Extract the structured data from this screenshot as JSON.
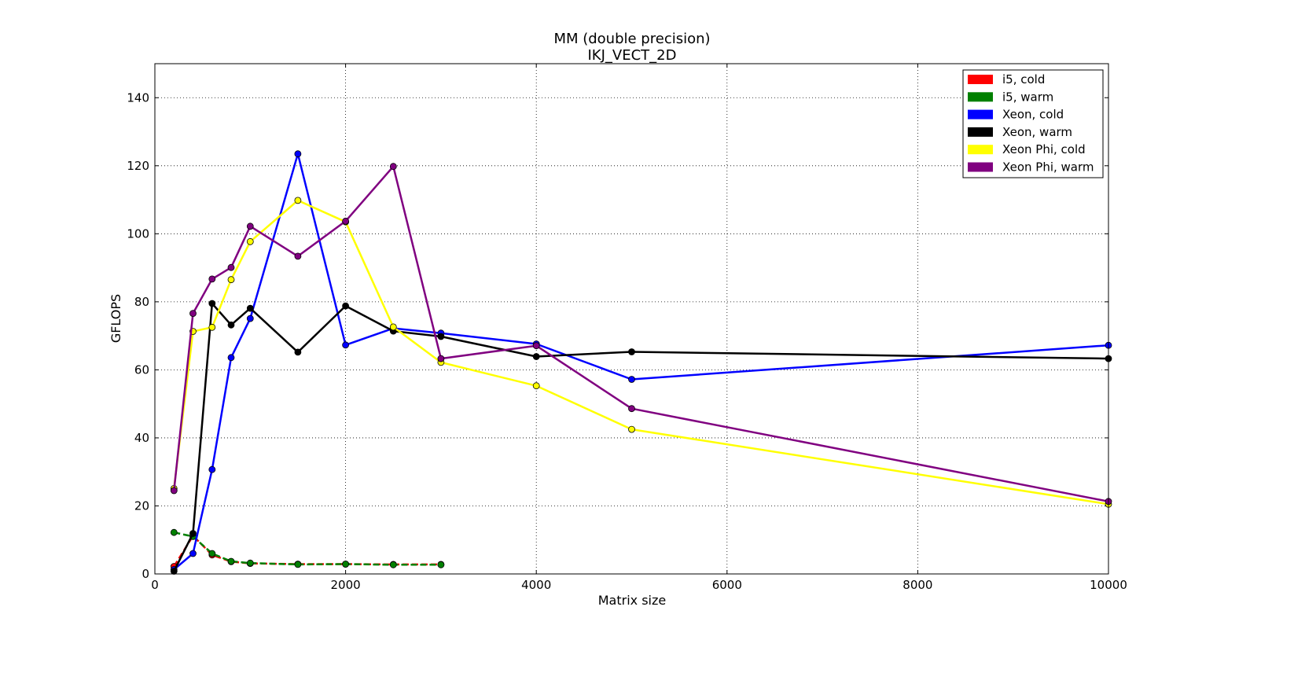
{
  "chart_data": {
    "type": "line",
    "title": "MM (double precision)",
    "subtitle": "IKJ_VECT_2D",
    "xlabel": "Matrix size",
    "ylabel": "GFLOPS",
    "xlim": [
      0,
      10000
    ],
    "ylim": [
      0,
      150
    ],
    "x_ticks": [
      0,
      2000,
      4000,
      6000,
      8000,
      10000
    ],
    "y_ticks": [
      0,
      20,
      40,
      60,
      80,
      100,
      120,
      140
    ],
    "grid": true,
    "legend_position": "top-right",
    "series": [
      {
        "name": "i5, cold",
        "color": "#ff0000",
        "dashed": true,
        "x": [
          200,
          400,
          600,
          800,
          1000,
          1500,
          2000,
          2500,
          3000
        ],
        "y": [
          2.2,
          11.2,
          5.6,
          3.6,
          3.1,
          2.9,
          2.9,
          2.8,
          2.8
        ]
      },
      {
        "name": "i5, warm",
        "color": "#008000",
        "dashed": true,
        "x": [
          200,
          400,
          600,
          800,
          1000,
          1500,
          2000,
          2500,
          3000
        ],
        "y": [
          12.2,
          11.0,
          6.0,
          3.7,
          3.2,
          2.8,
          2.9,
          2.7,
          2.7
        ]
      },
      {
        "name": "Xeon, cold",
        "color": "#0000ff",
        "dashed": false,
        "x": [
          200,
          400,
          600,
          800,
          1000,
          1500,
          2000,
          2500,
          3000,
          4000,
          5000,
          10000
        ],
        "y": [
          1.3,
          6.0,
          30.7,
          63.6,
          75.1,
          123.5,
          67.3,
          72.2,
          70.8,
          67.6,
          57.2,
          67.2
        ]
      },
      {
        "name": "Xeon, warm",
        "color": "#000000",
        "dashed": false,
        "x": [
          200,
          400,
          600,
          800,
          1000,
          1500,
          2000,
          2500,
          3000,
          4000,
          5000,
          10000
        ],
        "y": [
          0.8,
          11.9,
          79.5,
          73.2,
          78.1,
          65.2,
          78.8,
          71.4,
          69.8,
          63.9,
          65.3,
          63.3
        ]
      },
      {
        "name": "Xeon Phi, cold",
        "color": "#ffff00",
        "dashed": false,
        "x": [
          200,
          400,
          600,
          800,
          1000,
          1500,
          2000,
          2500,
          3000,
          4000,
          5000,
          10000
        ],
        "y": [
          25.1,
          71.3,
          72.5,
          86.5,
          97.7,
          109.8,
          103.5,
          72.6,
          62.2,
          55.3,
          42.5,
          20.5
        ]
      },
      {
        "name": "Xeon Phi, warm",
        "color": "#800080",
        "dashed": false,
        "x": [
          200,
          400,
          600,
          800,
          1000,
          1500,
          2000,
          2500,
          3000,
          4000,
          5000,
          10000
        ],
        "y": [
          24.5,
          76.6,
          86.7,
          90.1,
          102.2,
          93.4,
          103.7,
          119.8,
          63.3,
          67.1,
          48.6,
          21.3
        ]
      }
    ]
  }
}
